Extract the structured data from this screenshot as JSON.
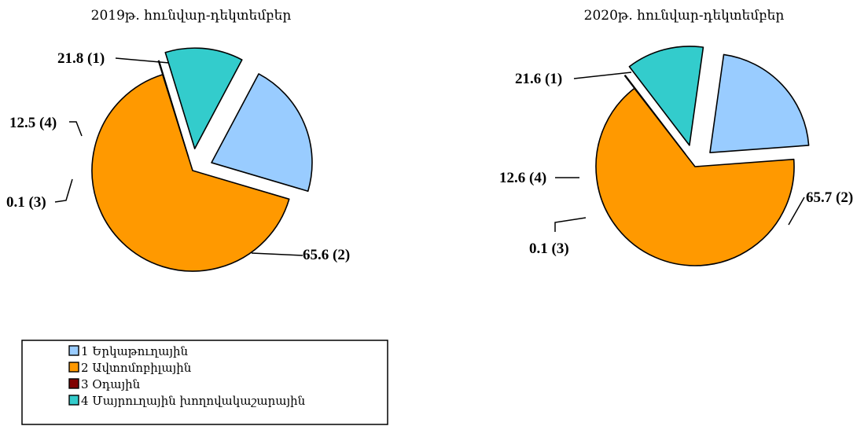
{
  "chart_data": [
    {
      "type": "pie",
      "title": "2019թ. հունվար-դեկտեմբեր",
      "slices": [
        {
          "category_id": 1,
          "value": 21.8,
          "label": "21.8 (1)"
        },
        {
          "category_id": 2,
          "value": 65.6,
          "label": "65.6 (2)"
        },
        {
          "category_id": 3,
          "value": 0.1,
          "label": "0.1 (3)"
        },
        {
          "category_id": 4,
          "value": 12.5,
          "label": "12.5 (4)"
        }
      ]
    },
    {
      "type": "pie",
      "title": "2020թ. հունվար-դեկտեմբեր",
      "slices": [
        {
          "category_id": 1,
          "value": 21.6,
          "label": "21.6 (1)"
        },
        {
          "category_id": 2,
          "value": 65.7,
          "label": "65.7 (2)"
        },
        {
          "category_id": 3,
          "value": 0.1,
          "label": "0.1 (3)"
        },
        {
          "category_id": 4,
          "value": 12.6,
          "label": "12.6 (4)"
        }
      ]
    }
  ],
  "legend": {
    "placement": "bottom-left",
    "items": [
      {
        "id": 1,
        "label": "1 Երկաթուղային",
        "color": "#99ccff"
      },
      {
        "id": 2,
        "label": "2 Ավտոմոբիլային",
        "color": "#ff9900"
      },
      {
        "id": 3,
        "label": "3 Օդային",
        "color": "#800000"
      },
      {
        "id": 4,
        "label": "4 Մայրուղային խողովակաշարային",
        "color": "#33cccc"
      }
    ]
  }
}
